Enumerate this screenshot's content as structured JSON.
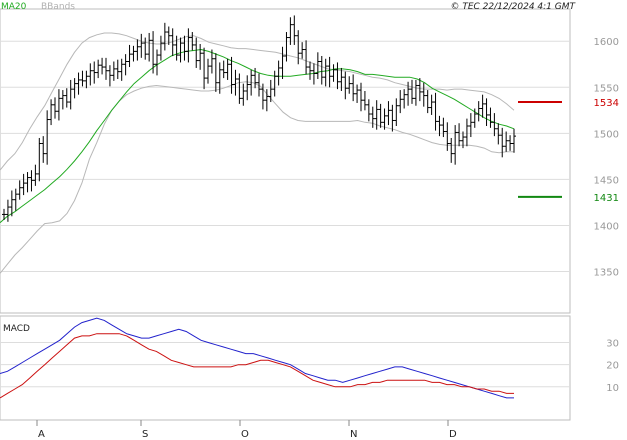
{
  "header": {
    "ma_label": "MA20",
    "bb_label": "BBands",
    "copyright": "© TEC 22/12/2024 4:1 GMT"
  },
  "macd_label": "MACD",
  "colors": {
    "price": "#000000",
    "ma20": "#22aa22",
    "bbands": "#b8b8b8",
    "grid": "#dddddd",
    "resistance": "#cc0000",
    "support": "#118811",
    "macd": "#2222cc",
    "signal": "#cc1111",
    "axis_text": "#999999"
  },
  "chart_data": [
    {
      "type": "ohlc",
      "title": "",
      "ylim": [
        1305,
        1635
      ],
      "y_ticks": [
        1350,
        1400,
        1450,
        1500,
        1550,
        1600
      ],
      "x_ticks": [
        "A",
        "S",
        "O",
        "N",
        "D"
      ],
      "levels": [
        {
          "value": 1534,
          "label": "1534",
          "kind": "resistance"
        },
        {
          "value": 1431,
          "label": "1431",
          "kind": "support"
        }
      ],
      "closes": [
        1412,
        1420,
        1428,
        1434,
        1441,
        1446,
        1452,
        1449,
        1456,
        1489,
        1478,
        1515,
        1531,
        1524,
        1538,
        1541,
        1534,
        1548,
        1554,
        1558,
        1557,
        1562,
        1568,
        1566,
        1574,
        1572,
        1568,
        1563,
        1570,
        1567,
        1575,
        1578,
        1586,
        1589,
        1594,
        1598,
        1586,
        1601,
        1575,
        1585,
        1598,
        1610,
        1606,
        1596,
        1585,
        1598,
        1589,
        1604,
        1596,
        1579,
        1587,
        1560,
        1573,
        1581,
        1555,
        1569,
        1566,
        1575,
        1553,
        1559,
        1538,
        1546,
        1553,
        1563,
        1555,
        1548,
        1536,
        1540,
        1548,
        1562,
        1571,
        1584,
        1604,
        1618,
        1606,
        1587,
        1591,
        1572,
        1568,
        1565,
        1578,
        1561,
        1573,
        1562,
        1569,
        1556,
        1561,
        1549,
        1554,
        1543,
        1547,
        1536,
        1531,
        1521,
        1516,
        1526,
        1512,
        1519,
        1525,
        1514,
        1530,
        1537,
        1542,
        1548,
        1538,
        1552,
        1545,
        1541,
        1528,
        1534,
        1513,
        1509,
        1502,
        1489,
        1478,
        1501,
        1492,
        1496,
        1508,
        1512,
        1521,
        1527,
        1532,
        1520,
        1512,
        1505,
        1498,
        1486,
        1492,
        1489,
        1497
      ],
      "ma20": [
        1403,
        1410,
        1415,
        1421,
        1427,
        1433,
        1439,
        1446,
        1453,
        1461,
        1470,
        1480,
        1491,
        1503,
        1514,
        1525,
        1535,
        1545,
        1554,
        1561,
        1568,
        1574,
        1579,
        1584,
        1587,
        1589,
        1590,
        1591,
        1589,
        1586,
        1583,
        1579,
        1576,
        1572,
        1568,
        1565,
        1563,
        1562,
        1562,
        1562,
        1563,
        1564,
        1565,
        1567,
        1568,
        1570,
        1570,
        1569,
        1567,
        1564,
        1564,
        1563,
        1562,
        1561,
        1561,
        1561,
        1559,
        1555,
        1549,
        1545,
        1541,
        1537,
        1532,
        1527,
        1522,
        1517,
        1513,
        1510,
        1508,
        1505
      ],
      "bbands_upper": [
        1460,
        1470,
        1478,
        1490,
        1505,
        1518,
        1530,
        1545,
        1560,
        1575,
        1588,
        1598,
        1604,
        1607,
        1609,
        1609,
        1608,
        1606,
        1603,
        1600,
        1598,
        1597,
        1597,
        1599,
        1602,
        1605,
        1606,
        1603,
        1599,
        1597,
        1595,
        1593,
        1592,
        1592,
        1591,
        1590,
        1589,
        1588,
        1586,
        1584,
        1582,
        1579,
        1576,
        1573,
        1570,
        1569,
        1568,
        1567,
        1565,
        1563,
        1561,
        1560,
        1558,
        1555,
        1553,
        1551,
        1549,
        1548,
        1548,
        1548,
        1547,
        1548,
        1548,
        1547,
        1546,
        1545,
        1542,
        1538,
        1532,
        1525
      ],
      "bbands_lower": [
        1348,
        1358,
        1368,
        1376,
        1385,
        1394,
        1402,
        1403,
        1405,
        1413,
        1427,
        1446,
        1472,
        1490,
        1510,
        1525,
        1535,
        1542,
        1546,
        1549,
        1551,
        1552,
        1551,
        1550,
        1549,
        1548,
        1547,
        1546,
        1546,
        1547,
        1549,
        1552,
        1555,
        1556,
        1555,
        1551,
        1541,
        1532,
        1523,
        1517,
        1514,
        1513,
        1513,
        1513,
        1513,
        1513,
        1513,
        1513,
        1514,
        1512,
        1511,
        1508,
        1506,
        1504,
        1501,
        1499,
        1496,
        1493,
        1490,
        1488,
        1487,
        1487,
        1487,
        1487,
        1486,
        1484,
        1480,
        1479,
        1480,
        1480
      ]
    },
    {
      "type": "line",
      "title": "MACD",
      "ylim": [
        -5,
        42
      ],
      "y_ticks": [
        10,
        20,
        30
      ],
      "series": [
        {
          "kind": "macd",
          "values": [
            16,
            17,
            19,
            21,
            23,
            25,
            27,
            29,
            31,
            34,
            37,
            39,
            40,
            41,
            40,
            38,
            36,
            34,
            33,
            32,
            32,
            33,
            34,
            35,
            36,
            35,
            33,
            31,
            30,
            29,
            28,
            27,
            26,
            25,
            25,
            24,
            23,
            22,
            21,
            20,
            18,
            16,
            15,
            14,
            13,
            13,
            12,
            13,
            14,
            15,
            16,
            17,
            18,
            19,
            19,
            18,
            17,
            16,
            15,
            14,
            13,
            12,
            11,
            10,
            9,
            8,
            7,
            6,
            5,
            5
          ]
        },
        {
          "kind": "signal",
          "values": [
            5,
            7,
            9,
            11,
            14,
            17,
            20,
            23,
            26,
            29,
            32,
            33,
            33,
            34,
            34,
            34,
            34,
            33,
            31,
            29,
            27,
            26,
            24,
            22,
            21,
            20,
            19,
            19,
            19,
            19,
            19,
            19,
            20,
            20,
            21,
            22,
            22,
            21,
            20,
            19,
            17,
            15,
            13,
            12,
            11,
            10,
            10,
            10,
            11,
            11,
            12,
            12,
            13,
            13,
            13,
            13,
            13,
            13,
            12,
            12,
            11,
            11,
            10,
            10,
            9,
            9,
            8,
            8,
            7,
            7
          ]
        }
      ]
    }
  ]
}
